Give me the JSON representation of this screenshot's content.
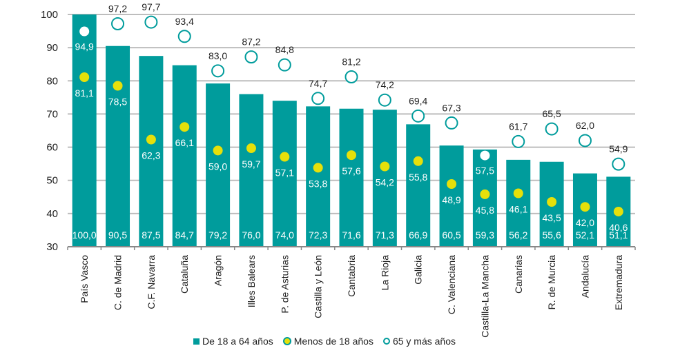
{
  "chart_data": {
    "type": "bar",
    "title": "",
    "xlabel": "",
    "ylabel": "",
    "ylim": [
      30,
      100
    ],
    "yticks": [
      30,
      40,
      50,
      60,
      70,
      80,
      90,
      100
    ],
    "grid": true,
    "legend_position": "bottom",
    "categories": [
      "País Vasco",
      "C. de Madrid",
      "C.F. Navarra",
      "Cataluña",
      "Aragón",
      "Illes Balears",
      "P. de Asturias",
      "Castilla y León",
      "Cantabria",
      "La Rioja",
      "Galicia",
      "C. Valenciana",
      "Castilla-La Mancha",
      "Canarias",
      "R. de Murcia",
      "Andalucía",
      "Extremadura"
    ],
    "series": [
      {
        "name": "De 18 a 64 años",
        "kind": "bar",
        "color": "#009c9c",
        "values": [
          100.0,
          90.5,
          87.5,
          84.7,
          79.2,
          76.0,
          74.0,
          72.3,
          71.6,
          71.3,
          66.9,
          60.5,
          59.3,
          56.2,
          55.6,
          52.1,
          51.1
        ],
        "labels": [
          "100,0",
          "90,5",
          "87,5",
          "84,7",
          "79,2",
          "76,0",
          "74,0",
          "72,3",
          "71,6",
          "71,3",
          "66,9",
          "60,5",
          "59,3",
          "56,2",
          "55,6",
          "52,1",
          "51,1"
        ]
      },
      {
        "name": "Menos de 18 años",
        "kind": "dot",
        "color": "#e6e00a",
        "values": [
          81.1,
          78.5,
          62.3,
          66.1,
          59.0,
          59.7,
          57.1,
          53.8,
          57.6,
          54.2,
          55.8,
          48.9,
          45.8,
          46.1,
          43.5,
          42.0,
          40.6
        ],
        "labels": [
          "81,1",
          "78,5",
          "62,3",
          "66,1",
          "59,0",
          "59,7",
          "57,1",
          "53,8",
          "57,6",
          "54,2",
          "55,8",
          "48,9",
          "45,8",
          "46,1",
          "43,5",
          "42,0",
          "40,6"
        ]
      },
      {
        "name": "65 y más años",
        "kind": "ring",
        "color": "#009c9c",
        "values": [
          94.9,
          97.2,
          97.7,
          93.4,
          83.0,
          87.2,
          84.8,
          74.7,
          81.2,
          74.2,
          69.4,
          67.3,
          57.5,
          61.7,
          65.5,
          62.0,
          54.9
        ],
        "labels": [
          "94,9",
          "97,2",
          "97,7",
          "93,4",
          "83,0",
          "87,2",
          "84,8",
          "74,7",
          "81,2",
          "74,2",
          "69,4",
          "67,3",
          "57,5",
          "61,7",
          "65,5",
          "62,0",
          "54,9"
        ]
      }
    ]
  },
  "legend": {
    "items": [
      "De 18 a 64 años",
      "Menos de 18 años",
      "65 y más años"
    ]
  }
}
